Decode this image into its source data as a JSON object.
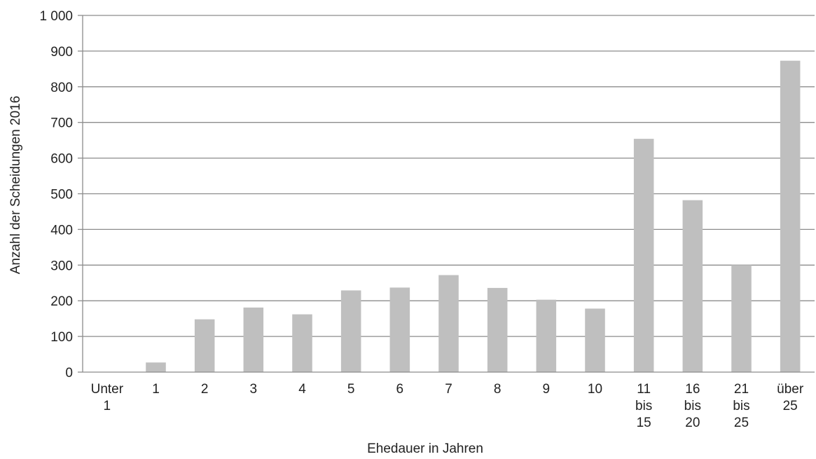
{
  "chart_data": {
    "type": "bar",
    "title": "",
    "xlabel": "Ehedauer in Jahren",
    "ylabel": "Anzahl der Scheidungen 2016",
    "ylim": [
      0,
      1000
    ],
    "yticks": [
      0,
      100,
      200,
      300,
      400,
      500,
      600,
      700,
      800,
      900,
      1000
    ],
    "ytick_labels": [
      "0",
      "100",
      "200",
      "300",
      "400",
      "500",
      "600",
      "700",
      "800",
      "900",
      "1 000"
    ],
    "categories": [
      [
        "Unter",
        "1"
      ],
      [
        "1"
      ],
      [
        "2"
      ],
      [
        "3"
      ],
      [
        "4"
      ],
      [
        "5"
      ],
      [
        "6"
      ],
      [
        "7"
      ],
      [
        "8"
      ],
      [
        "9"
      ],
      [
        "10"
      ],
      [
        "11",
        "bis",
        "15"
      ],
      [
        "16",
        "bis",
        "20"
      ],
      [
        "21",
        "bis",
        "25"
      ],
      [
        "über",
        "25"
      ]
    ],
    "values": [
      0,
      27,
      148,
      181,
      162,
      229,
      237,
      272,
      236,
      203,
      178,
      654,
      482,
      300,
      873
    ],
    "colors": {
      "bar": "#bfbfbf",
      "grid": "#8c8c8c",
      "axis": "#8c8c8c"
    },
    "grid": true,
    "legend": false
  }
}
